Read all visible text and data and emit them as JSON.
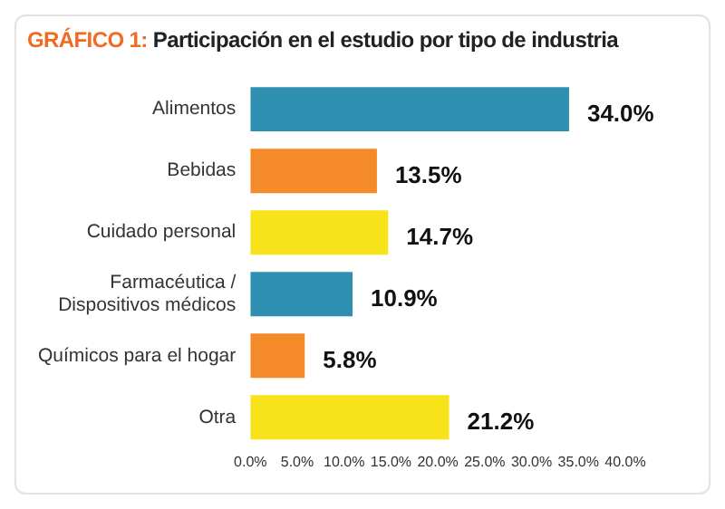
{
  "chart_data": {
    "type": "bar",
    "orientation": "horizontal",
    "title": "GRÁFICO 1: Participación en el estudio por tipo de industria",
    "categories": [
      "Alimentos",
      "Bebidas",
      "Cuidado personal",
      "Farmacéutica / Dispositivos médicos",
      "Químicos para el hogar",
      "Otra"
    ],
    "values": [
      34.0,
      13.5,
      14.7,
      10.9,
      5.8,
      21.2
    ],
    "colors": [
      "#2f8fb0",
      "#f58a2a",
      "#f8e21a",
      "#2f8fb0",
      "#f58a2a",
      "#f8e21a"
    ],
    "value_labels": [
      "34.0%",
      "13.5%",
      "14.7%",
      "10.9%",
      "5.8%",
      "21.2%"
    ],
    "xlim": [
      0,
      40
    ],
    "xticks": [
      {
        "value": 0,
        "label": "0.0%"
      },
      {
        "value": 5,
        "label": "5.0%"
      },
      {
        "value": 10,
        "label": "10.0%"
      },
      {
        "value": 15,
        "label": "15.0%"
      },
      {
        "value": 20,
        "label": "20.0%"
      },
      {
        "value": 25,
        "label": "25.0%"
      },
      {
        "value": 30,
        "label": "30.0%"
      },
      {
        "value": 35,
        "label": "35.0%"
      },
      {
        "value": 40,
        "label": "40.0%"
      }
    ],
    "grid": false,
    "legend": false
  }
}
